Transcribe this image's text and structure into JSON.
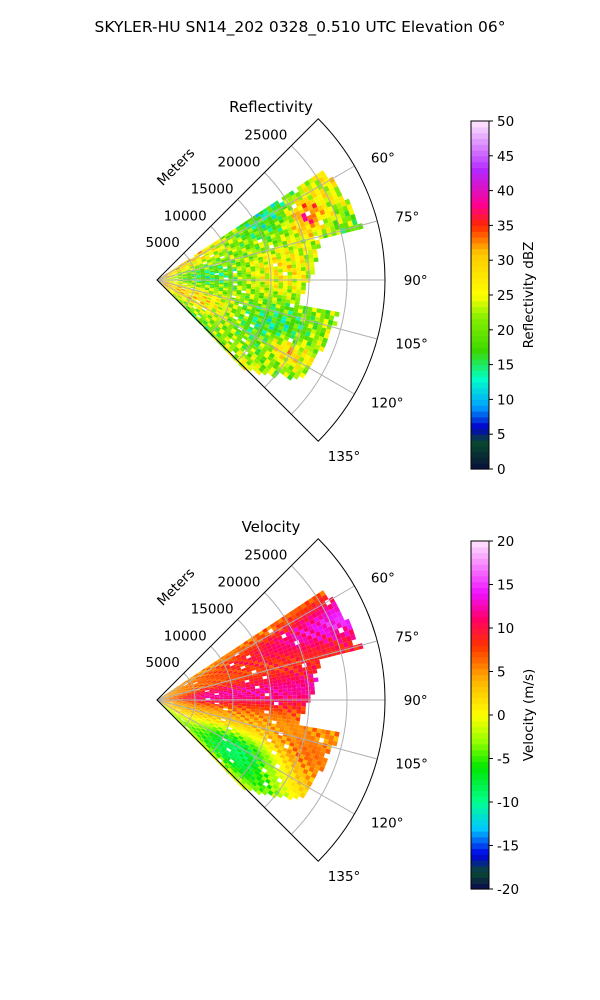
{
  "figure": {
    "suptitle": "SKYLER-HU  SN14_202  0328_0.510 UTC Elevation 06°"
  },
  "chart_data": [
    {
      "type": "heatmap",
      "projection": "polar-sector",
      "title": "Reflectivity",
      "range_label": "Meters",
      "range_ticks": [
        5000,
        10000,
        15000,
        20000,
        25000
      ],
      "range_tick_labels": [
        "5000",
        "10000",
        "15000",
        "20000",
        "25000"
      ],
      "range_max": 30000,
      "azimuth_range_deg": [
        45,
        135
      ],
      "azimuth_ticks": [
        60,
        75,
        90,
        105,
        120,
        135
      ],
      "azimuth_tick_labels": [
        "60°",
        "75°",
        "90°",
        "105°",
        "120°",
        "135°"
      ],
      "grid": true,
      "colorbar": {
        "label": "Reflectivity dBZ",
        "vmin": 0,
        "vmax": 50,
        "ticks": [
          0,
          5,
          10,
          15,
          20,
          25,
          30,
          35,
          40,
          45,
          50
        ],
        "tick_labels": [
          "0",
          "5",
          "10",
          "15",
          "20",
          "25",
          "30",
          "35",
          "40",
          "45",
          "50"
        ],
        "stops": [
          {
            "v": 0,
            "c": "#08103a"
          },
          {
            "v": 4,
            "c": "#0a4a2e"
          },
          {
            "v": 6,
            "c": "#0000c8"
          },
          {
            "v": 9,
            "c": "#00a0ff"
          },
          {
            "v": 13,
            "c": "#00ffc8"
          },
          {
            "v": 17,
            "c": "#3cd700"
          },
          {
            "v": 22,
            "c": "#8cf000"
          },
          {
            "v": 25,
            "c": "#ffff00"
          },
          {
            "v": 31,
            "c": "#ffc800"
          },
          {
            "v": 35,
            "c": "#ff2800"
          },
          {
            "v": 38,
            "c": "#ff0090"
          },
          {
            "v": 43,
            "c": "#b428ff"
          },
          {
            "v": 50,
            "c": "#ffe8ff"
          }
        ]
      }
    },
    {
      "type": "heatmap",
      "projection": "polar-sector",
      "title": "Velocity",
      "range_label": "Meters",
      "range_ticks": [
        5000,
        10000,
        15000,
        20000,
        25000
      ],
      "range_tick_labels": [
        "5000",
        "10000",
        "15000",
        "20000",
        "25000"
      ],
      "range_max": 30000,
      "azimuth_range_deg": [
        45,
        135
      ],
      "azimuth_ticks": [
        60,
        75,
        90,
        105,
        120,
        135
      ],
      "azimuth_tick_labels": [
        "60°",
        "75°",
        "90°",
        "105°",
        "120°",
        "135°"
      ],
      "grid": true,
      "colorbar": {
        "label": "Velocity (m/s)",
        "vmin": -20,
        "vmax": 20,
        "ticks": [
          -20,
          -15,
          -10,
          -5,
          0,
          5,
          10,
          15,
          20
        ],
        "tick_labels": [
          "-20",
          "-15",
          "-10",
          "-5",
          "0",
          "5",
          "10",
          "15",
          "20"
        ],
        "stops": [
          {
            "v": -20,
            "c": "#0a0a50"
          },
          {
            "v": -18,
            "c": "#0a4a2e"
          },
          {
            "v": -16,
            "c": "#0000e6"
          },
          {
            "v": -13,
            "c": "#00c8ff"
          },
          {
            "v": -10,
            "c": "#00ff90"
          },
          {
            "v": -6,
            "c": "#00e600"
          },
          {
            "v": -3,
            "c": "#96ff00"
          },
          {
            "v": 0,
            "c": "#ffff00"
          },
          {
            "v": 4,
            "c": "#ffb400"
          },
          {
            "v": 8,
            "c": "#ff3200"
          },
          {
            "v": 11,
            "c": "#ff0064"
          },
          {
            "v": 14,
            "c": "#ee10ff"
          },
          {
            "v": 20,
            "c": "#ffe6ff"
          }
        ]
      }
    }
  ]
}
